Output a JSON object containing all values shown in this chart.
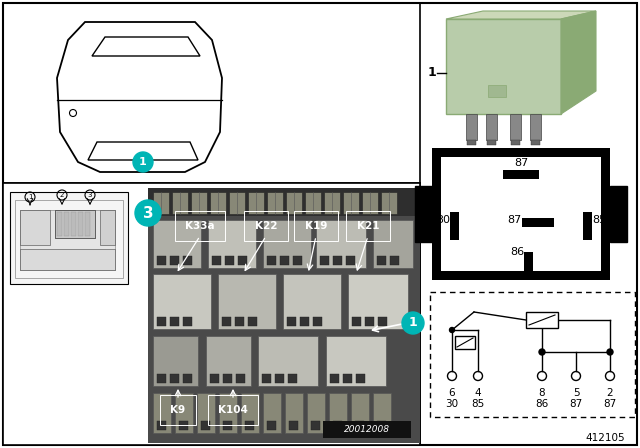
{
  "bg_color": "#ffffff",
  "teal_color": "#00b5b5",
  "black": "#000000",
  "white": "#ffffff",
  "gray": "#888888",
  "dk_gray": "#444444",
  "relay_green": "#b8ccaa",
  "relay_dark_green": "#8aaa74",
  "relay_top_color": "#ccd8b8",
  "photo_bg": "#4a4a4a",
  "photo_dark": "#383838",
  "fuse_color": "#999988",
  "relay_block_colors": [
    "#aaaaaa",
    "#bbbbaa",
    "#999988",
    "#ccccbb",
    "#c0c0b8"
  ],
  "page_number": "412105",
  "pin_labels_top": [
    "6",
    "4",
    "8",
    "5",
    "2"
  ],
  "pin_labels_bottom": [
    "30",
    "85",
    "86",
    "87",
    "87"
  ],
  "k_labels_above": [
    "K33a",
    "K22",
    "K19",
    "K21"
  ],
  "k_labels_below": [
    "K9",
    "K104"
  ]
}
